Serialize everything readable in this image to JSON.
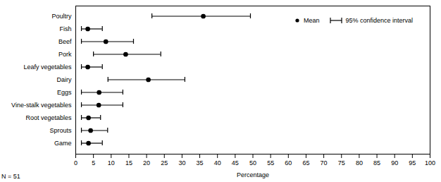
{
  "chart_data": {
    "type": "dot",
    "orientation": "horizontal",
    "xlabel": "Percentage",
    "xlim": [
      0,
      100
    ],
    "xticks": [
      0,
      5,
      10,
      15,
      20,
      25,
      30,
      35,
      40,
      45,
      50,
      55,
      60,
      65,
      70,
      75,
      80,
      85,
      90,
      95,
      100
    ],
    "legend": "top-right",
    "categories": [
      "Poultry",
      "Fish",
      "Beef",
      "Pork",
      "Leafy vegetables",
      "Dairy",
      "Eggs",
      "Vine-stalk vegetables",
      "Root vegetables",
      "Sprouts",
      "Game"
    ],
    "series": [
      {
        "name": "Mean",
        "color": "#000000",
        "marker": "circle",
        "values": [
          36,
          3.4,
          8.5,
          14.1,
          3.4,
          20.5,
          6.6,
          6.5,
          3.6,
          4.2,
          3.6
        ]
      }
    ],
    "error_bars": {
      "name": "95% confidence interval",
      "low": [
        21.5,
        1.6,
        1.6,
        5,
        1.6,
        9.1,
        1.6,
        1.6,
        1.6,
        1.6,
        1.6
      ],
      "high": [
        49.3,
        7.5,
        16.3,
        24,
        7.5,
        30.8,
        13.3,
        13.3,
        7,
        9,
        7.5
      ]
    },
    "annotations": [
      "N = 51"
    ]
  }
}
